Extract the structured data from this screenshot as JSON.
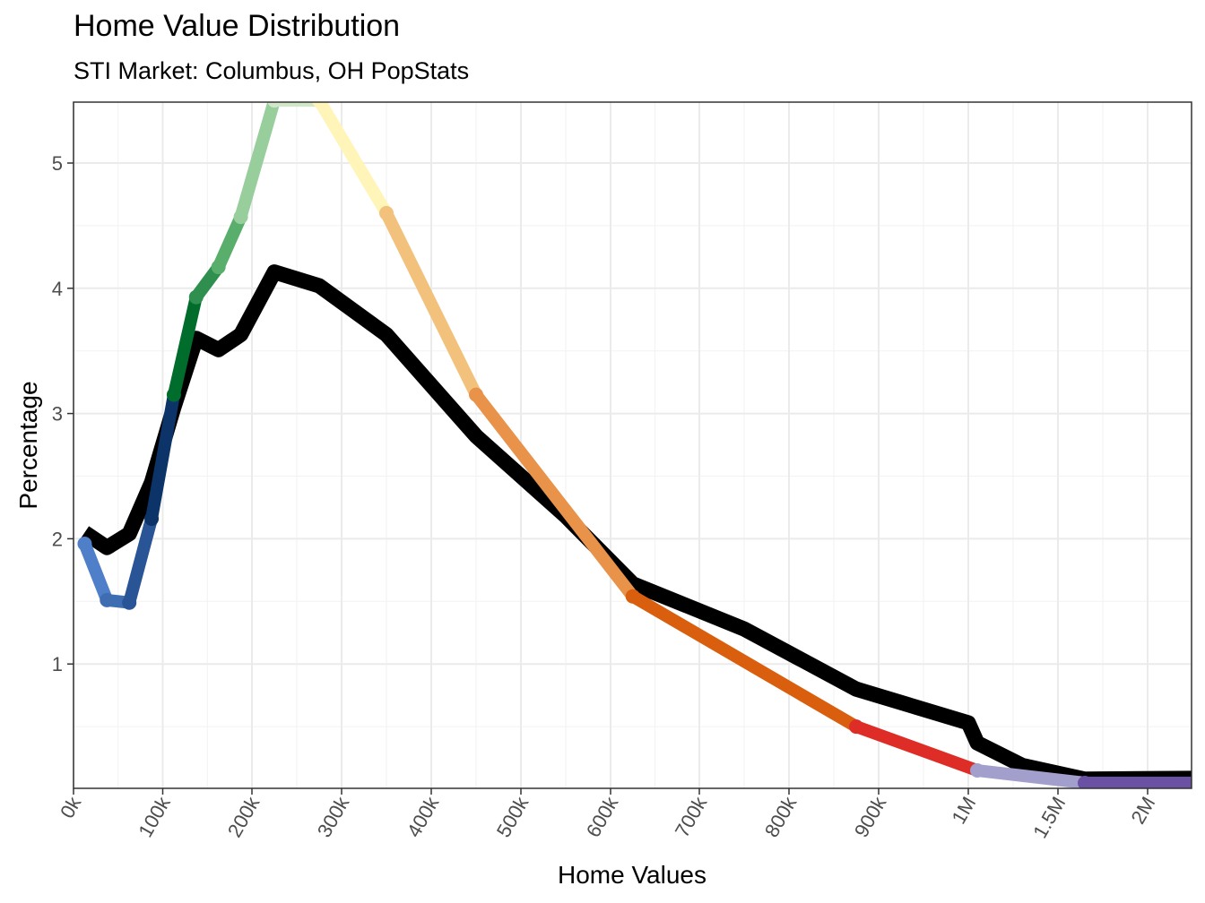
{
  "chart_data": {
    "type": "line",
    "title": "Home Value Distribution",
    "subtitle": "STI Market: Columbus, OH PopStats",
    "xlabel": "Home Values",
    "ylabel": "Percentage",
    "grid": true,
    "legend": "none",
    "x_axis_scale": "piecewise: linear 0k–900k, then compressed steps to 1M, 1.5M, 2M",
    "x_ticks": [
      {
        "value": 0,
        "label": "0k"
      },
      {
        "value": 100000,
        "label": "100k"
      },
      {
        "value": 200000,
        "label": "200k"
      },
      {
        "value": 300000,
        "label": "300k"
      },
      {
        "value": 400000,
        "label": "400k"
      },
      {
        "value": 500000,
        "label": "500k"
      },
      {
        "value": 600000,
        "label": "600k"
      },
      {
        "value": 700000,
        "label": "700k"
      },
      {
        "value": 800000,
        "label": "800k"
      },
      {
        "value": 900000,
        "label": "900k"
      },
      {
        "value": 1000000,
        "label": "1M"
      },
      {
        "value": 1500000,
        "label": "1.5M"
      },
      {
        "value": 2000000,
        "label": "2M"
      }
    ],
    "y_ticks": [
      {
        "value": 1,
        "label": "1"
      },
      {
        "value": 2,
        "label": "2"
      },
      {
        "value": 3,
        "label": "3"
      },
      {
        "value": 4,
        "label": "4"
      },
      {
        "value": 5,
        "label": "5"
      }
    ],
    "ylim": [
      0.05,
      5.5
    ],
    "series": [
      {
        "color": "#000000",
        "points": [
          [
            12500,
            2.05
          ],
          [
            37500,
            1.93
          ],
          [
            62500,
            2.04
          ],
          [
            87500,
            2.45
          ],
          [
            112500,
            3.05
          ],
          [
            137500,
            3.6
          ],
          [
            162500,
            3.51
          ],
          [
            187500,
            3.63
          ],
          [
            225000,
            4.13
          ],
          [
            275000,
            4.02
          ],
          [
            350000,
            3.63
          ],
          [
            450000,
            2.82
          ],
          [
            550000,
            2.18
          ],
          [
            625000,
            1.64
          ],
          [
            750000,
            1.28
          ],
          [
            875000,
            0.8
          ],
          [
            1000000,
            0.53
          ],
          [
            1050000,
            0.37
          ],
          [
            1300000,
            0.19
          ],
          [
            1650000,
            0.08
          ],
          [
            2500000,
            0.09
          ]
        ]
      },
      {
        "color_segments": [
          {
            "x1": 12500,
            "y1": 1.96,
            "x2": 37500,
            "y2": 1.51,
            "color": "#4f7fc8"
          },
          {
            "x1": 37500,
            "y1": 1.51,
            "x2": 62500,
            "y2": 1.49,
            "color": "#3f6db2"
          },
          {
            "x1": 62500,
            "y1": 1.49,
            "x2": 87500,
            "y2": 2.16,
            "color": "#295496"
          },
          {
            "x1": 87500,
            "y1": 2.16,
            "x2": 112500,
            "y2": 3.15,
            "color": "#0c3468"
          },
          {
            "x1": 112500,
            "y1": 3.15,
            "x2": 137500,
            "y2": 3.93,
            "color": "#006d2c"
          },
          {
            "x1": 137500,
            "y1": 3.93,
            "x2": 162500,
            "y2": 4.17,
            "color": "#2f8f4f"
          },
          {
            "x1": 162500,
            "y1": 4.17,
            "x2": 187500,
            "y2": 4.57,
            "color": "#5aae6b"
          },
          {
            "x1": 187500,
            "y1": 4.57,
            "x2": 225000,
            "y2": 5.5,
            "color": "#97ce9c"
          },
          {
            "x1": 225000,
            "y1": 5.5,
            "x2": 275000,
            "y2": 5.5,
            "color": "#d1e8c8"
          },
          {
            "x1": 275000,
            "y1": 5.5,
            "x2": 350000,
            "y2": 4.6,
            "color": "#fff5b8"
          },
          {
            "x1": 350000,
            "y1": 4.6,
            "x2": 450000,
            "y2": 3.15,
            "color": "#f2c27c"
          },
          {
            "x1": 450000,
            "y1": 3.15,
            "x2": 625000,
            "y2": 1.54,
            "color": "#e8924a"
          },
          {
            "x1": 625000,
            "y1": 1.54,
            "x2": 875000,
            "y2": 0.5,
            "color": "#d95f0e"
          },
          {
            "x1": 875000,
            "y1": 0.5,
            "x2": 1050000,
            "y2": 0.15,
            "color": "#de2d26"
          },
          {
            "x1": 1050000,
            "y1": 0.15,
            "x2": 1650000,
            "y2": 0.05,
            "color": "#a39fcc"
          },
          {
            "x1": 1650000,
            "y1": 0.05,
            "x2": 2500000,
            "y2": 0.05,
            "color": "#6a51a3"
          }
        ]
      }
    ]
  }
}
